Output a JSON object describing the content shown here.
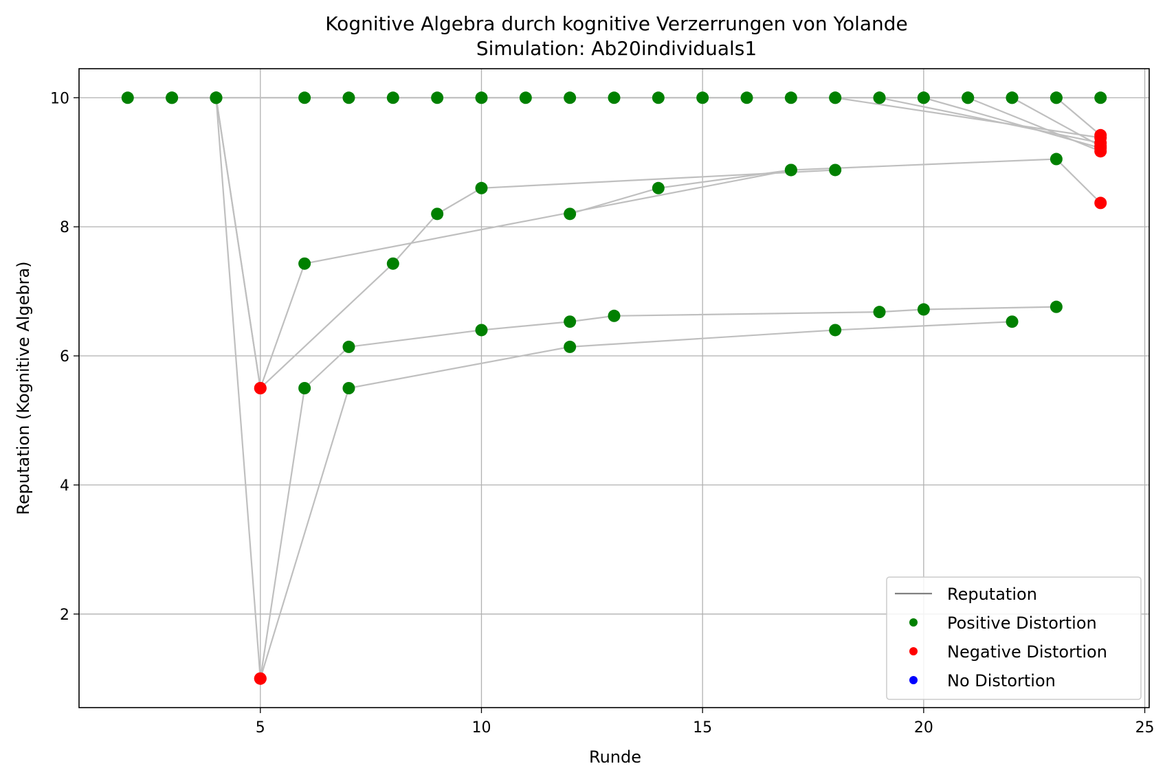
{
  "chart_data": {
    "type": "scatter",
    "title": "Kognitive Algebra durch kognitive Verzerrungen von Yolande",
    "subtitle": "Simulation: Ab20individuals1",
    "xlabel": "Runde",
    "ylabel": "Reputation (Kognitive Algebra)",
    "xlim": [
      0.9,
      25.1
    ],
    "ylim": [
      0.55,
      10.45
    ],
    "xticks": [
      5,
      10,
      15,
      20,
      25
    ],
    "yticks": [
      2,
      4,
      6,
      8,
      10
    ],
    "grid": true,
    "legend_position": "lower-right",
    "colors": {
      "reputation": "#808080",
      "positive": "#008000",
      "negative": "#ff0000",
      "none": "#0000ff",
      "connector": "#bfbfbf"
    },
    "legend": [
      {
        "label": "Reputation",
        "kind": "line",
        "color": "#808080"
      },
      {
        "label": "Positive Distortion",
        "kind": "point",
        "color": "#008000"
      },
      {
        "label": "Negative Distortion",
        "kind": "point",
        "color": "#ff0000"
      },
      {
        "label": "No Distortion",
        "kind": "point",
        "color": "#0000ff"
      }
    ],
    "series": [
      {
        "points": [
          [
            2,
            10
          ],
          [
            3,
            10
          ],
          [
            4,
            10
          ],
          [
            6,
            10
          ],
          [
            7,
            10
          ],
          [
            8,
            10
          ],
          [
            9,
            10
          ],
          [
            10,
            10
          ],
          [
            11,
            10
          ],
          [
            12,
            10
          ],
          [
            13,
            10
          ],
          [
            14,
            10
          ],
          [
            15,
            10
          ],
          [
            16,
            10
          ],
          [
            17,
            10
          ],
          [
            18,
            10
          ],
          [
            19,
            10
          ],
          [
            20,
            10
          ],
          [
            21,
            10
          ],
          [
            22,
            10
          ],
          [
            23,
            10
          ],
          [
            24,
            10
          ]
        ],
        "dist": [
          "pos",
          "pos",
          "pos",
          "pos",
          "pos",
          "pos",
          "pos",
          "pos",
          "pos",
          "pos",
          "pos",
          "pos",
          "pos",
          "pos",
          "pos",
          "pos",
          "pos",
          "pos",
          "pos",
          "pos",
          "pos",
          "pos"
        ]
      },
      {
        "points": [
          [
            3,
            10
          ],
          [
            4,
            10
          ],
          [
            5,
            5.5
          ],
          [
            6,
            7.43
          ],
          [
            17,
            8.88
          ],
          [
            23,
            9.05
          ],
          [
            24,
            8.37
          ]
        ],
        "dist": [
          "pos",
          "pos",
          "neg",
          "pos",
          "pos",
          "pos",
          "neg"
        ]
      },
      {
        "points": [
          [
            4,
            10
          ],
          [
            5,
            5.5
          ],
          [
            8,
            7.43
          ],
          [
            9,
            8.2
          ],
          [
            10,
            8.6
          ],
          [
            18,
            8.88
          ]
        ],
        "dist": [
          "pos",
          "neg",
          "pos",
          "pos",
          "pos",
          "pos"
        ]
      },
      {
        "points": [
          [
            12,
            8.2
          ],
          [
            14,
            8.6
          ],
          [
            17,
            8.88
          ]
        ],
        "dist": [
          "pos",
          "pos",
          "pos"
        ]
      },
      {
        "points": [
          [
            4,
            10
          ],
          [
            5,
            1
          ],
          [
            6,
            5.5
          ],
          [
            7,
            6.14
          ],
          [
            10,
            6.4
          ],
          [
            12,
            6.53
          ],
          [
            13,
            6.62
          ],
          [
            19,
            6.68
          ],
          [
            20,
            6.72
          ],
          [
            23,
            6.76
          ]
        ],
        "dist": [
          "pos",
          "neg",
          "pos",
          "pos",
          "pos",
          "pos",
          "pos",
          "pos",
          "pos",
          "pos"
        ]
      },
      {
        "points": [
          [
            5,
            1
          ],
          [
            7,
            5.5
          ],
          [
            12,
            6.14
          ],
          [
            18,
            6.4
          ],
          [
            22,
            6.53
          ]
        ],
        "dist": [
          "neg",
          "pos",
          "pos",
          "pos",
          "pos"
        ]
      },
      {
        "points": [
          [
            18,
            10
          ],
          [
            24,
            9.38
          ]
        ],
        "dist": [
          "pos",
          "neg"
        ]
      },
      {
        "points": [
          [
            19,
            10
          ],
          [
            24,
            9.3
          ]
        ],
        "dist": [
          "pos",
          "neg"
        ]
      },
      {
        "points": [
          [
            20,
            10
          ],
          [
            24,
            9.22
          ]
        ],
        "dist": [
          "pos",
          "neg"
        ]
      },
      {
        "points": [
          [
            21,
            10
          ],
          [
            24,
            9.17
          ]
        ],
        "dist": [
          "pos",
          "neg"
        ]
      },
      {
        "points": [
          [
            22,
            10
          ],
          [
            24,
            9.25
          ]
        ],
        "dist": [
          "pos",
          "neg"
        ]
      },
      {
        "points": [
          [
            23,
            10
          ],
          [
            24,
            9.42
          ]
        ],
        "dist": [
          "pos",
          "neg"
        ]
      }
    ]
  }
}
